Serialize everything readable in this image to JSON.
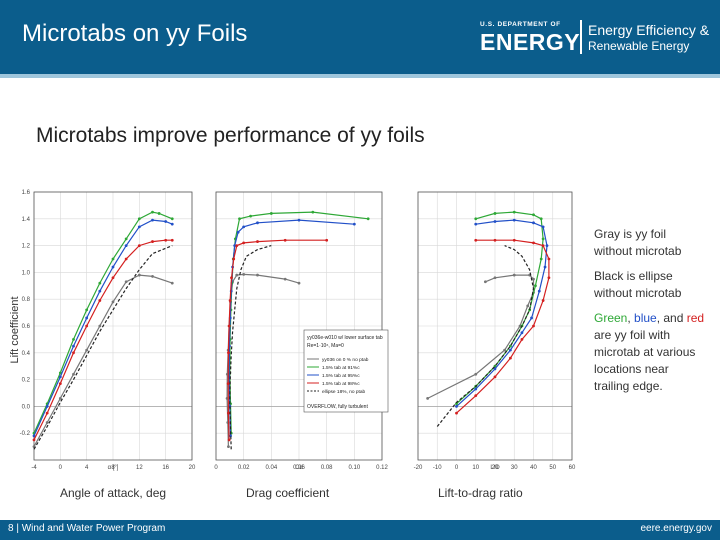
{
  "header": {
    "title": "Microtabs on yy Foils",
    "logo_dept": "U.S. DEPARTMENT OF",
    "logo_energy": "ENERGY",
    "logo_eere_line1": "Energy Efficiency &",
    "logo_eere_line2": "Renewable Energy"
  },
  "subtitle": "Microtabs improve performance of yy foils",
  "notes": {
    "gray": "Gray is yy foil without microtab",
    "black": "Black is ellipse without microtab",
    "colors_green": "Green",
    "colors_sep1": ", ",
    "colors_blue": "blue",
    "colors_sep2": ", and ",
    "colors_red": "red",
    "colors_rest": " are yy foil with microtab at various locations near trailing edge."
  },
  "xlabels": {
    "left": "Angle of attack, deg",
    "middle": "Drag coefficient",
    "right": "Lift-to-drag ratio"
  },
  "footer": {
    "left": "8 | Wind and Water Power Program",
    "right": "eere.energy.gov"
  },
  "colors": {
    "gray": "#777777",
    "black": "#222222",
    "green": "#2ea836",
    "blue": "#2250c8",
    "red": "#d42020",
    "header": "#0b5d8c"
  },
  "chart_data": [
    {
      "type": "line",
      "xlabel": "α [°]",
      "ylabel": "Lift coefficient",
      "xlim": [
        -4,
        20
      ],
      "ylim": [
        -0.4,
        1.6
      ],
      "xticks": [
        "-4",
        "0",
        "4",
        "8",
        "12",
        "16",
        "20"
      ],
      "yticks": [
        "-0.2",
        "0.0",
        "0.2",
        "0.4",
        "0.6",
        "0.8",
        "1.0",
        "1.2",
        "1.4",
        "1.6"
      ],
      "series": [
        {
          "color": "gray",
          "dashed": false,
          "x": [
            -4,
            -2,
            0,
            2,
            4,
            6,
            8,
            10,
            12,
            14,
            17
          ],
          "y": [
            -0.3,
            -0.12,
            0.06,
            0.24,
            0.42,
            0.6,
            0.78,
            0.93,
            0.98,
            0.97,
            0.92
          ]
        },
        {
          "color": "green",
          "dashed": false,
          "x": [
            -4,
            -2,
            0,
            2,
            4,
            6,
            8,
            10,
            12,
            14,
            15,
            17
          ],
          "y": [
            -0.2,
            0.02,
            0.25,
            0.5,
            0.72,
            0.92,
            1.1,
            1.25,
            1.4,
            1.45,
            1.44,
            1.4
          ]
        },
        {
          "color": "blue",
          "dashed": false,
          "x": [
            -4,
            -2,
            0,
            2,
            4,
            6,
            8,
            10,
            12,
            14,
            16,
            17
          ],
          "y": [
            -0.22,
            0.0,
            0.22,
            0.45,
            0.66,
            0.86,
            1.04,
            1.2,
            1.34,
            1.39,
            1.38,
            1.36
          ]
        },
        {
          "color": "red",
          "dashed": false,
          "x": [
            -4,
            -2,
            0,
            2,
            4,
            6,
            8,
            10,
            12,
            14,
            16,
            17
          ],
          "y": [
            -0.25,
            -0.05,
            0.17,
            0.4,
            0.6,
            0.79,
            0.96,
            1.1,
            1.2,
            1.23,
            1.24,
            1.24
          ]
        },
        {
          "color": "black",
          "dashed": true,
          "x": [
            -4,
            -2,
            0,
            2,
            4,
            6,
            8,
            10,
            12,
            14,
            16,
            17
          ],
          "y": [
            -0.32,
            -0.15,
            0.03,
            0.2,
            0.38,
            0.56,
            0.72,
            0.88,
            1.02,
            1.14,
            1.18,
            1.2
          ]
        }
      ]
    },
    {
      "type": "line",
      "xlabel": "Cd",
      "xlim": [
        0,
        0.12
      ],
      "ylim": [
        -0.4,
        1.6
      ],
      "xticks": [
        "0",
        "0.02",
        "0.04",
        "0.06",
        "0.08",
        "0.10",
        "0.12"
      ],
      "legend": {
        "position": "bottom-right",
        "title": "yy036e-w010 w/ lower surface tab",
        "subtitle": "Re=1·10⁶, Ma=0",
        "entries": [
          {
            "label": "yy036 on 0 % no ptab",
            "color": "gray"
          },
          {
            "label": "1.5% tab at 91%c",
            "color": "green"
          },
          {
            "label": "1.5% tab at 95%c",
            "color": "blue"
          },
          {
            "label": "1.5% tab at 98%c",
            "color": "red"
          },
          {
            "label": "ellipse 18%, no ptab",
            "color": "black"
          }
        ],
        "footer": "OVERFLOW, fully turbulent"
      },
      "series": [
        {
          "color": "gray",
          "dashed": false,
          "x": [
            0.009,
            0.0085,
            0.008,
            0.0082,
            0.0088,
            0.0095,
            0.0105,
            0.012,
            0.015,
            0.02,
            0.03,
            0.05,
            0.06
          ],
          "y": [
            -0.3,
            -0.12,
            0.06,
            0.24,
            0.42,
            0.6,
            0.78,
            0.93,
            0.98,
            0.985,
            0.98,
            0.95,
            0.92
          ]
        },
        {
          "color": "green",
          "dashed": false,
          "x": [
            0.011,
            0.0105,
            0.01,
            0.0102,
            0.0108,
            0.0115,
            0.0125,
            0.014,
            0.017,
            0.025,
            0.04,
            0.07,
            0.11
          ],
          "y": [
            -0.2,
            0.02,
            0.25,
            0.5,
            0.72,
            0.92,
            1.1,
            1.25,
            1.4,
            1.42,
            1.44,
            1.45,
            1.4
          ]
        },
        {
          "color": "blue",
          "dashed": false,
          "x": [
            0.0105,
            0.01,
            0.0095,
            0.0097,
            0.0103,
            0.011,
            0.012,
            0.0135,
            0.016,
            0.02,
            0.03,
            0.06,
            0.1
          ],
          "y": [
            -0.22,
            0.0,
            0.22,
            0.45,
            0.66,
            0.86,
            1.04,
            1.2,
            1.3,
            1.34,
            1.37,
            1.39,
            1.36
          ]
        },
        {
          "color": "red",
          "dashed": false,
          "x": [
            0.0095,
            0.009,
            0.0088,
            0.009,
            0.0095,
            0.0102,
            0.0112,
            0.0128,
            0.015,
            0.02,
            0.03,
            0.05,
            0.08
          ],
          "y": [
            -0.25,
            -0.05,
            0.17,
            0.4,
            0.6,
            0.79,
            0.96,
            1.1,
            1.2,
            1.22,
            1.23,
            1.24,
            1.24
          ]
        },
        {
          "color": "black",
          "dashed": true,
          "x": [
            0.011,
            0.0105,
            0.01,
            0.0103,
            0.011,
            0.012,
            0.0135,
            0.015,
            0.018,
            0.022,
            0.03,
            0.04
          ],
          "y": [
            -0.32,
            -0.15,
            0.03,
            0.2,
            0.38,
            0.56,
            0.72,
            0.88,
            1.02,
            1.12,
            1.17,
            1.2
          ]
        }
      ]
    },
    {
      "type": "line",
      "xlabel": "L/D",
      "xlim": [
        -20,
        60
      ],
      "ylim": [
        -0.4,
        1.6
      ],
      "xticks": [
        "-20",
        "-10",
        "0",
        "10",
        "20",
        "30",
        "40",
        "50",
        "60"
      ],
      "series": [
        {
          "color": "gray",
          "dashed": false,
          "x": [
            -15,
            10,
            25,
            33,
            37,
            40,
            40,
            38,
            30,
            20,
            15
          ],
          "y": [
            0.06,
            0.24,
            0.42,
            0.6,
            0.75,
            0.85,
            0.95,
            0.98,
            0.98,
            0.96,
            0.93
          ]
        },
        {
          "color": "green",
          "dashed": false,
          "x": [
            0,
            10,
            20,
            28,
            34,
            38,
            41,
            44,
            45,
            44,
            40,
            30,
            20,
            10
          ],
          "y": [
            0.02,
            0.15,
            0.3,
            0.45,
            0.6,
            0.72,
            0.9,
            1.1,
            1.25,
            1.4,
            1.43,
            1.45,
            1.44,
            1.4
          ]
        },
        {
          "color": "blue",
          "dashed": false,
          "x": [
            0,
            10,
            20,
            28,
            34,
            39,
            43,
            46,
            47,
            45,
            40,
            30,
            20,
            10
          ],
          "y": [
            0.0,
            0.13,
            0.28,
            0.42,
            0.55,
            0.66,
            0.86,
            1.04,
            1.2,
            1.34,
            1.37,
            1.39,
            1.38,
            1.36
          ]
        },
        {
          "color": "red",
          "dashed": false,
          "x": [
            0,
            10,
            20,
            28,
            34,
            40,
            45,
            48,
            48,
            45,
            40,
            30,
            20,
            10
          ],
          "y": [
            -0.05,
            0.08,
            0.22,
            0.36,
            0.5,
            0.6,
            0.79,
            0.96,
            1.1,
            1.2,
            1.22,
            1.24,
            1.24,
            1.24
          ]
        },
        {
          "color": "black",
          "dashed": true,
          "x": [
            -10,
            0,
            10,
            20,
            28,
            34,
            38,
            40,
            38,
            34,
            30,
            25
          ],
          "y": [
            -0.15,
            0.03,
            0.15,
            0.3,
            0.45,
            0.6,
            0.72,
            0.88,
            1.02,
            1.12,
            1.17,
            1.2
          ]
        }
      ]
    }
  ],
  "shared_ylabel": "Lift coefficient"
}
